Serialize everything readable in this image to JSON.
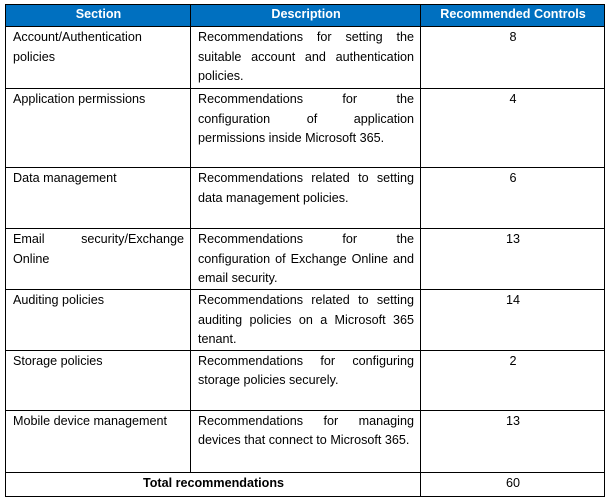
{
  "table": {
    "header_color": "#0070C0",
    "columns": [
      "Section",
      "Description",
      "Recommended Controls"
    ],
    "rows": [
      {
        "section": "Account/Authentication policies",
        "description": "Recommendations for setting the suitable account and authentication policies.",
        "controls": "8"
      },
      {
        "section": "Application permissions",
        "description": "Recommendations for the configuration of application permissions inside Microsoft 365.",
        "controls": "4"
      },
      {
        "section": "Data management",
        "description": "Recommendations related to setting data management policies.",
        "controls": "6"
      },
      {
        "section": "Email security/Exchange Online",
        "description": "Recommendations for the configuration of Exchange Online and email security.",
        "controls": "13"
      },
      {
        "section": "Auditing policies",
        "description": "Recommendations related to setting auditing policies on a Microsoft 365 tenant.",
        "controls": "14"
      },
      {
        "section": "Storage policies",
        "description": "Recommendations for configuring storage policies securely.",
        "controls": "2"
      },
      {
        "section": "Mobile device management",
        "description": "Recommendations for managing devices that connect to Microsoft 365.",
        "controls": "13"
      }
    ],
    "total_label": "Total recommendations",
    "total_value": "60"
  }
}
